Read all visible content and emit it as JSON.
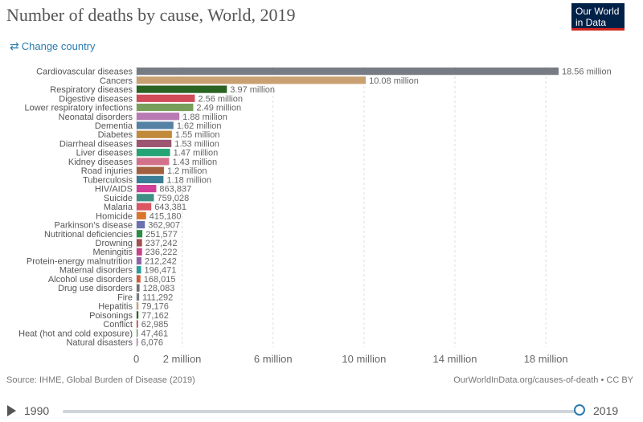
{
  "header": {
    "title": "Number of deaths by cause, World, 2019",
    "logo_line1": "Our World",
    "logo_line2": "in Data",
    "change_country": "Change country"
  },
  "footer": {
    "source": "Source: IHME, Global Burden of Disease (2019)",
    "credit": "OurWorldInData.org/causes-of-death • CC BY"
  },
  "timeline": {
    "start": "1990",
    "end": "2019",
    "position": 1.0
  },
  "chart_data": {
    "type": "bar",
    "orientation": "horizontal",
    "title": "Number of deaths by cause, World, 2019",
    "xlim": [
      0,
      19500000
    ],
    "x_ticks": [
      0,
      2000000,
      6000000,
      10000000,
      14000000,
      18000000
    ],
    "x_tick_labels": [
      "0",
      "2 million",
      "6 million",
      "10 million",
      "14 million",
      "18 million"
    ],
    "categories": [
      "Cardiovascular diseases",
      "Cancers",
      "Respiratory diseases",
      "Digestive diseases",
      "Lower respiratory infections",
      "Neonatal disorders",
      "Dementia",
      "Diabetes",
      "Diarrheal diseases",
      "Liver diseases",
      "Kidney diseases",
      "Road injuries",
      "Tuberculosis",
      "HIV/AIDS",
      "Suicide",
      "Malaria",
      "Homicide",
      "Parkinson's disease",
      "Nutritional deficiencies",
      "Drowning",
      "Meningitis",
      "Protein-energy malnutrition",
      "Maternal disorders",
      "Alcohol use disorders",
      "Drug use disorders",
      "Fire",
      "Hepatitis",
      "Poisonings",
      "Conflict",
      "Heat (hot and cold exposure)",
      "Natural disasters"
    ],
    "values": [
      18560000,
      10080000,
      3970000,
      2560000,
      2490000,
      1880000,
      1620000,
      1550000,
      1530000,
      1470000,
      1430000,
      1200000,
      1180000,
      863837,
      759028,
      643381,
      415180,
      362907,
      251577,
      237242,
      236222,
      212242,
      196471,
      168015,
      128083,
      111292,
      79176,
      77162,
      62985,
      47461,
      6076
    ],
    "value_labels": [
      "18.56 million",
      "10.08 million",
      "3.97 million",
      "2.56 million",
      "2.49 million",
      "1.88 million",
      "1.62 million",
      "1.55 million",
      "1.53 million",
      "1.47 million",
      "1.43 million",
      "1.2 million",
      "1.18 million",
      "863,837",
      "759,028",
      "643,381",
      "415,180",
      "362,907",
      "251,577",
      "237,242",
      "236,222",
      "212,242",
      "196,471",
      "168,015",
      "128,083",
      "111,292",
      "79,176",
      "77,162",
      "62,985",
      "47,461",
      "6,076"
    ],
    "colors": [
      "#777b84",
      "#c9a071",
      "#2b6323",
      "#d14b58",
      "#779f5a",
      "#b979b3",
      "#5582a4",
      "#c1893a",
      "#9c5672",
      "#24a375",
      "#d3718a",
      "#a2603e",
      "#3a7d96",
      "#d33e99",
      "#3e8f84",
      "#dc5563",
      "#d9762c",
      "#6c72b0",
      "#2c8d47",
      "#a35050",
      "#c94189",
      "#8f63a8",
      "#2a9d9c",
      "#cc5c3c",
      "#6f7077",
      "#777b84",
      "#c9a071",
      "#2b6323",
      "#d14b58",
      "#779f5a",
      "#b979b3"
    ]
  }
}
